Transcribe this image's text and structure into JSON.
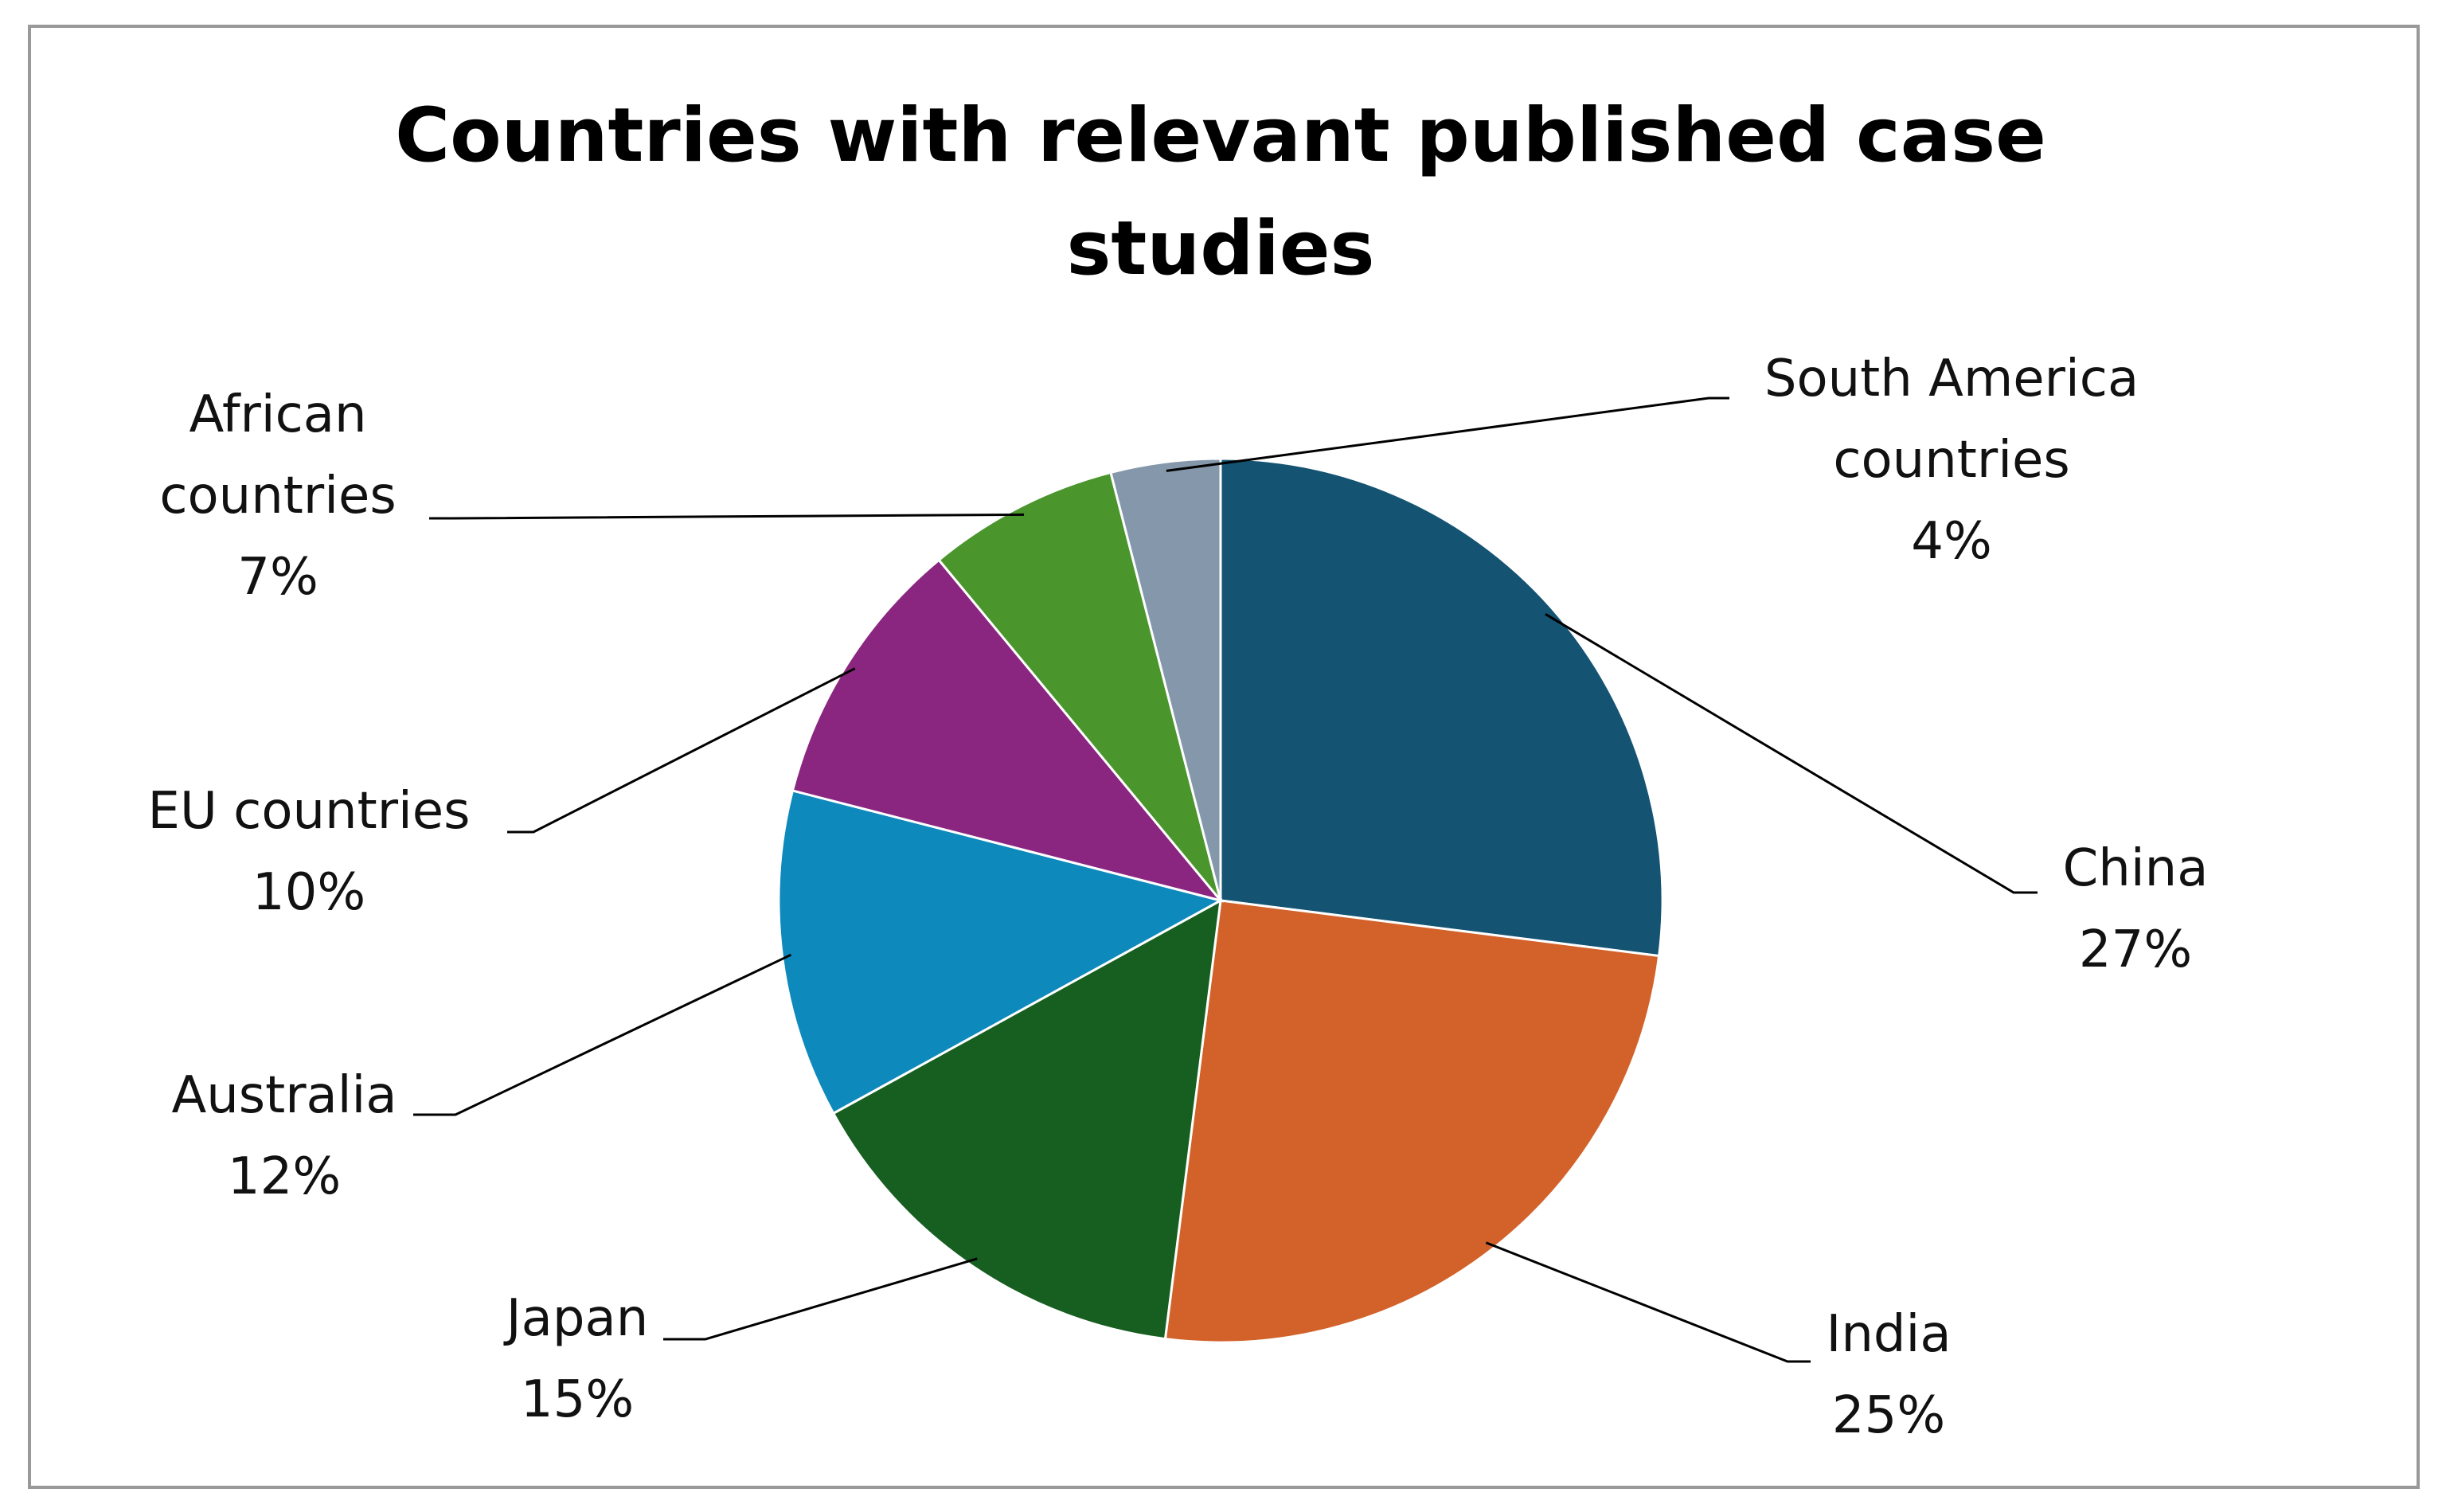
{
  "chart_data": {
    "type": "pie",
    "title": "Countries with relevant published case studies",
    "categories": [
      "China",
      "India",
      "Japan",
      "Australia",
      "EU countries",
      "African countries",
      "South America countries"
    ],
    "values": [
      27,
      25,
      15,
      12,
      10,
      7,
      4
    ],
    "value_labels": [
      "27%",
      "25%",
      "15%",
      "12%",
      "10%",
      "7%",
      "4%"
    ],
    "colors": [
      "#145372",
      "#d2622a",
      "#175e21",
      "#0e89bc",
      "#8a2680",
      "#4a962d",
      "#8598ab"
    ]
  }
}
